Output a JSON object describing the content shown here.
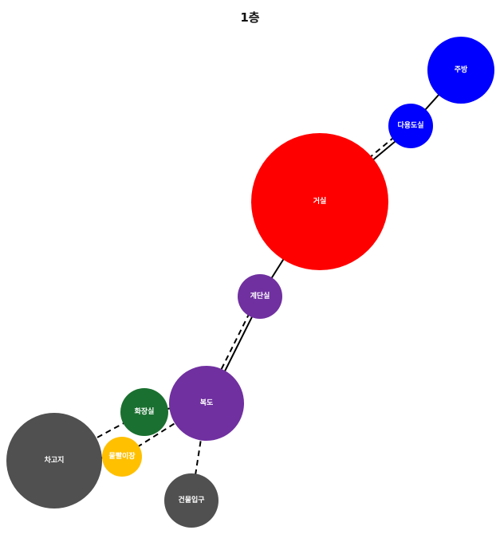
{
  "title": "1층",
  "rooms": {
    "kitchen": {
      "label": "주방",
      "color": "#0000FF"
    },
    "utility_room": {
      "label": "다용도실",
      "color": "#0000FF"
    },
    "living_room": {
      "label": "거실",
      "color": "#FF0000"
    },
    "staircase": {
      "label": "계단실",
      "color": "#7030A0"
    },
    "hallway": {
      "label": "복도",
      "color": "#7030A0"
    },
    "bathroom": {
      "label": "화장실",
      "color": "#1A7030"
    },
    "laundry": {
      "label": "물빨이장",
      "color": "#FFC000"
    },
    "garage": {
      "label": "차고지",
      "color": "#505050"
    },
    "entrance": {
      "label": "건물입구",
      "color": "#505050"
    }
  },
  "connections": [
    {
      "from": "kitchen",
      "to": "utility_room",
      "style": "solid"
    },
    {
      "from": "utility_room",
      "to": "living_room",
      "style": "solid"
    },
    {
      "from": "utility_room",
      "to": "living_room",
      "style": "dashed"
    },
    {
      "from": "living_room",
      "to": "staircase",
      "style": "solid"
    },
    {
      "from": "staircase",
      "to": "hallway",
      "style": "solid"
    },
    {
      "from": "staircase",
      "to": "hallway",
      "style": "dashed"
    },
    {
      "from": "hallway",
      "to": "bathroom",
      "style": "solid"
    },
    {
      "from": "hallway",
      "to": "laundry",
      "style": "dashed"
    },
    {
      "from": "bathroom",
      "to": "garage",
      "style": "dashed"
    },
    {
      "from": "laundry",
      "to": "garage",
      "style": "dashed"
    },
    {
      "from": "hallway",
      "to": "entrance",
      "style": "dashed"
    }
  ]
}
